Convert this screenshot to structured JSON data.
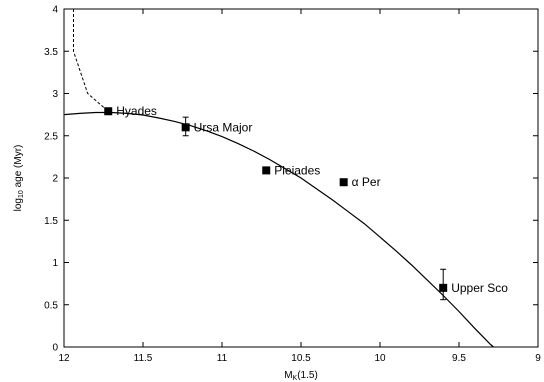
{
  "chart_data": {
    "type": "scatter",
    "title": "",
    "xlabel": {
      "base": "M",
      "sub": "K",
      "suffix": "(1.5)"
    },
    "ylabel": {
      "prefix": "log",
      "sub": "10",
      "suffix": " age (Myr)"
    },
    "xlim": [
      12,
      9
    ],
    "ylim": [
      0,
      4
    ],
    "x_ticks": [
      "12",
      "11.5",
      "11",
      "10.5",
      "10",
      "9.5",
      "9"
    ],
    "y_ticks": [
      "0",
      "0.5",
      "1",
      "1.5",
      "2",
      "2.5",
      "3",
      "3.5",
      "4"
    ],
    "points": [
      {
        "label": "Hyades",
        "x": 11.72,
        "y": 2.79
      },
      {
        "label": "Ursa Major",
        "x": 11.23,
        "y": 2.6,
        "err": [
          0.12,
          0.1
        ]
      },
      {
        "label": "Pleiades",
        "x": 10.72,
        "y": 2.09
      },
      {
        "label": "α Per",
        "x": 10.23,
        "y": 1.95
      },
      {
        "label": "Upper Sco",
        "x": 9.6,
        "y": 0.7,
        "err": [
          0.22,
          0.14
        ]
      }
    ],
    "fit_curve": {
      "style": "solid",
      "x": [
        12.0,
        11.9,
        11.8,
        11.7,
        11.6,
        11.5,
        11.4,
        11.3,
        11.2,
        11.1,
        11.0,
        10.9,
        10.8,
        10.7,
        10.6,
        10.5,
        10.4,
        10.3,
        10.2,
        10.1,
        10.0,
        9.9,
        9.8,
        9.7,
        9.6,
        9.5,
        9.4,
        9.3,
        9.2,
        9.17
      ],
      "y": [
        2.75,
        2.765,
        2.775,
        2.775,
        2.765,
        2.745,
        2.71,
        2.67,
        2.62,
        2.56,
        2.49,
        2.41,
        2.32,
        2.22,
        2.11,
        2.0,
        1.87,
        1.74,
        1.6,
        1.46,
        1.3,
        1.14,
        0.97,
        0.79,
        0.61,
        0.42,
        0.22,
        0.03,
        -0.13,
        -0.2
      ]
    },
    "extension_curve": {
      "style": "dashed",
      "x": [
        11.94,
        11.94,
        11.85,
        11.72
      ],
      "y": [
        4.0,
        3.5,
        3.0,
        2.79
      ]
    },
    "grid": false,
    "legend": "none"
  }
}
